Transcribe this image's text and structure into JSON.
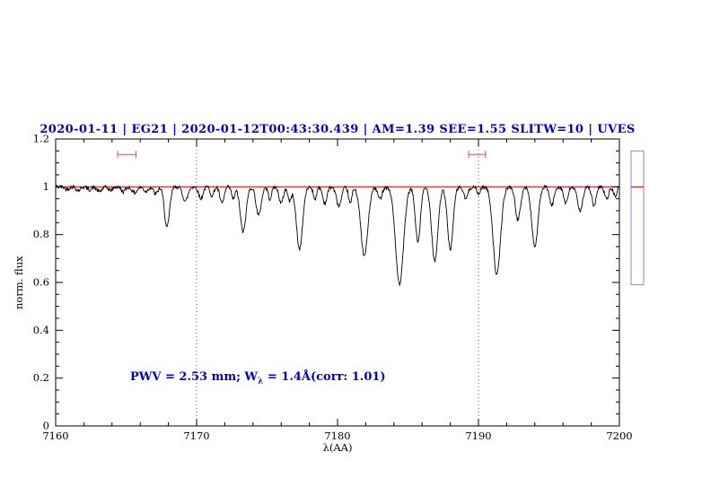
{
  "chart_data": {
    "type": "line",
    "title": "2020-01-11 | EG21 | 2020-01-12T00:43:30.439 | AM=1.39 SEE=1.55 SLITW=10 | UVES",
    "xlabel": "λ(AA)",
    "ylabel": "norm. flux",
    "xlim": [
      7160,
      7200
    ],
    "ylim": [
      0,
      1.2
    ],
    "x_ticks": [
      {
        "value": 7160,
        "label": "7160"
      },
      {
        "value": 7170,
        "label": "7170"
      },
      {
        "value": 7180,
        "label": "7180"
      },
      {
        "value": 7190,
        "label": "7190"
      },
      {
        "value": 7200,
        "label": "7200"
      }
    ],
    "y_ticks": [
      {
        "value": 0,
        "label": "0"
      },
      {
        "value": 0.2,
        "label": "0.2"
      },
      {
        "value": 0.4,
        "label": "0.4"
      },
      {
        "value": 0.6,
        "label": "0.6"
      },
      {
        "value": 0.8,
        "label": "0.8"
      },
      {
        "value": 1,
        "label": "1"
      },
      {
        "value": 1.2,
        "label": "1.2"
      }
    ],
    "x_minor_step": 2,
    "y_minor_step": 0.05,
    "grid": false,
    "continuum_level": 1.0,
    "reference_line_y": 1.0,
    "dotted_vlines": [
      7170,
      7190
    ],
    "noise_amplitude": 0.008,
    "noise_seed": 42,
    "sample_step": 0.04,
    "absorption_lines": [
      [
        7160.8,
        0.01,
        0.15
      ],
      [
        7161.6,
        0.015,
        0.15
      ],
      [
        7162.4,
        0.012,
        0.15
      ],
      [
        7163.1,
        0.02,
        0.18
      ],
      [
        7163.9,
        0.015,
        0.15
      ],
      [
        7164.8,
        0.02,
        0.15
      ],
      [
        7165.6,
        0.025,
        0.18
      ],
      [
        7166.4,
        0.02,
        0.15
      ],
      [
        7167.1,
        0.03,
        0.15
      ],
      [
        7167.9,
        0.17,
        0.18
      ],
      [
        7169.2,
        0.06,
        0.18
      ],
      [
        7170.3,
        0.05,
        0.15
      ],
      [
        7171.1,
        0.04,
        0.12
      ],
      [
        7171.8,
        0.07,
        0.15
      ],
      [
        7172.6,
        0.05,
        0.12
      ],
      [
        7173.3,
        0.19,
        0.2
      ],
      [
        7174.4,
        0.12,
        0.18
      ],
      [
        7175.2,
        0.05,
        0.12
      ],
      [
        7176.0,
        0.07,
        0.15
      ],
      [
        7176.6,
        0.06,
        0.12
      ],
      [
        7177.3,
        0.26,
        0.22
      ],
      [
        7178.4,
        0.05,
        0.12
      ],
      [
        7179.1,
        0.07,
        0.15
      ],
      [
        7180.1,
        0.08,
        0.18
      ],
      [
        7180.9,
        0.07,
        0.12
      ],
      [
        7181.9,
        0.29,
        0.25
      ],
      [
        7183.0,
        0.05,
        0.15
      ],
      [
        7184.4,
        0.41,
        0.28
      ],
      [
        7185.7,
        0.23,
        0.18
      ],
      [
        7186.9,
        0.31,
        0.22
      ],
      [
        7188.0,
        0.26,
        0.2
      ],
      [
        7189.1,
        0.05,
        0.15
      ],
      [
        7190.0,
        0.03,
        0.12
      ],
      [
        7191.3,
        0.37,
        0.26
      ],
      [
        7192.8,
        0.14,
        0.18
      ],
      [
        7194.0,
        0.25,
        0.22
      ],
      [
        7195.2,
        0.08,
        0.15
      ],
      [
        7196.2,
        0.07,
        0.15
      ],
      [
        7197.2,
        0.1,
        0.18
      ],
      [
        7198.2,
        0.08,
        0.15
      ],
      [
        7199.1,
        0.05,
        0.15
      ],
      [
        7199.7,
        0.04,
        0.12
      ]
    ],
    "error_markers": [
      {
        "x_start": 7164.4,
        "x_end": 7165.7,
        "y": 1.135
      },
      {
        "x_start": 7189.3,
        "x_end": 7190.5,
        "y": 1.135
      }
    ],
    "side_box": {
      "flux_top": 1.15,
      "flux_bottom": 0.59,
      "reference_y": 1.0
    },
    "annotation_text": "PWV = 2.53 mm; Wλ = 1.4Å(corr: 1.01)",
    "colors": {
      "title": "#0000cc",
      "annotation": "#0000cc",
      "reference_line": "#cc0000",
      "error_marker": "#cc5555",
      "spectrum": "#000000",
      "side_box_border": "#8888cc",
      "dotted_line": "#333333"
    },
    "legend": null
  },
  "annotation": {
    "prefix": "PWV = 2.53 mm; W",
    "sub": "λ",
    "suffix": " = 1.4Å(corr: 1.01)"
  }
}
